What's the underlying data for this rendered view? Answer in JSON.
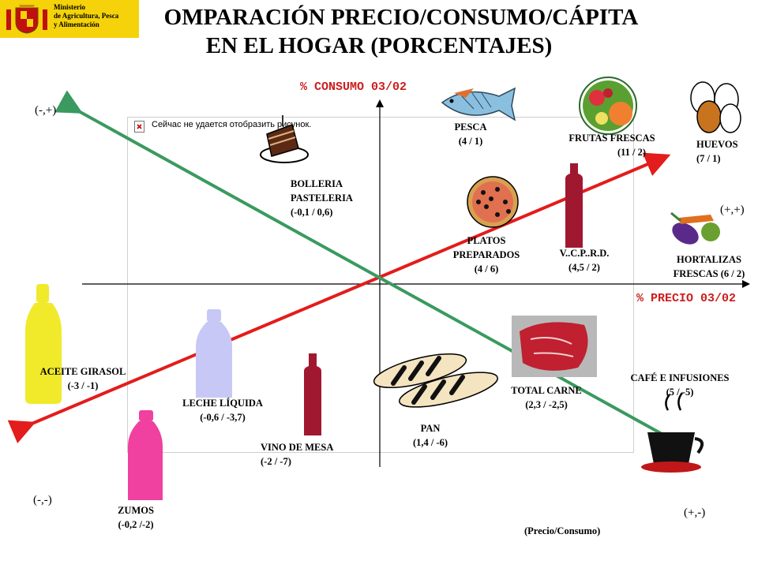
{
  "header": {
    "logo_lines": [
      "Ministerio",
      "de Agricultura, Pesca",
      "y Alimentación"
    ],
    "title_line1": "OMPARACIÓN PRECIO/CONSUMO/CÁPITA",
    "title_line2": "EN EL HOGAR (PORCENTAJES)"
  },
  "axes": {
    "y_label": "% CONSUMO 03/02",
    "x_label": "% PRECIO 03/02",
    "footer": "(Precio/Consumo)"
  },
  "quadrants": {
    "top_left": "(-,+)",
    "top_right": "(+,+)",
    "bottom_left": "(-,-)",
    "bottom_right": "(+,-)"
  },
  "broken_image_text": "Сейчас не удается отобразить рисунок.",
  "items": {
    "pesca": {
      "name": "PESCA",
      "value": "(4 /  1)"
    },
    "frutas": {
      "name": "FRUTAS FRESCAS",
      "value": "(11 / 2)"
    },
    "huevos": {
      "name": "HUEVOS",
      "value": "(7  / 1)"
    },
    "bolleria": {
      "name1": "BOLLERIA",
      "name2": "PASTELERIA",
      "value": "(-0,1  / 0,6)"
    },
    "platos": {
      "name1": "PLATOS",
      "name2": "PREPARADOS",
      "value": "(4 /  6)"
    },
    "vcprd": {
      "name": "V..C.P..R.D.",
      "value": "(4,5 / 2)"
    },
    "hortalizas": {
      "name1": "HORTALIZAS",
      "name2": "FRESCAS (6 / 2)"
    },
    "aceite": {
      "name": "ACEITE GIRASOL",
      "value": "(-3  / -1)"
    },
    "leche": {
      "name": "LECHE LÍQUIDA",
      "value": "(-0,6  / -3,7)"
    },
    "vino": {
      "name": "VINO DE MESA",
      "value": "(-2   /  -7)"
    },
    "pan": {
      "name": "PAN",
      "value": "(1,4 /  -6)"
    },
    "carne": {
      "name": "TOTAL CARNE",
      "value": "(2,3 / -2,5)"
    },
    "cafe": {
      "name": "CAFÉ E INFUSIONES",
      "value": "(5  /  -5)"
    },
    "zumos": {
      "name": "ZUMOS",
      "value": "(-0,2   /-2)"
    }
  },
  "colors": {
    "red_arrow": "#e31c1c",
    "green_arrow": "#3a9a5f",
    "logo_bg": "#f5d20a",
    "axis_label": "#cc1d1d"
  }
}
